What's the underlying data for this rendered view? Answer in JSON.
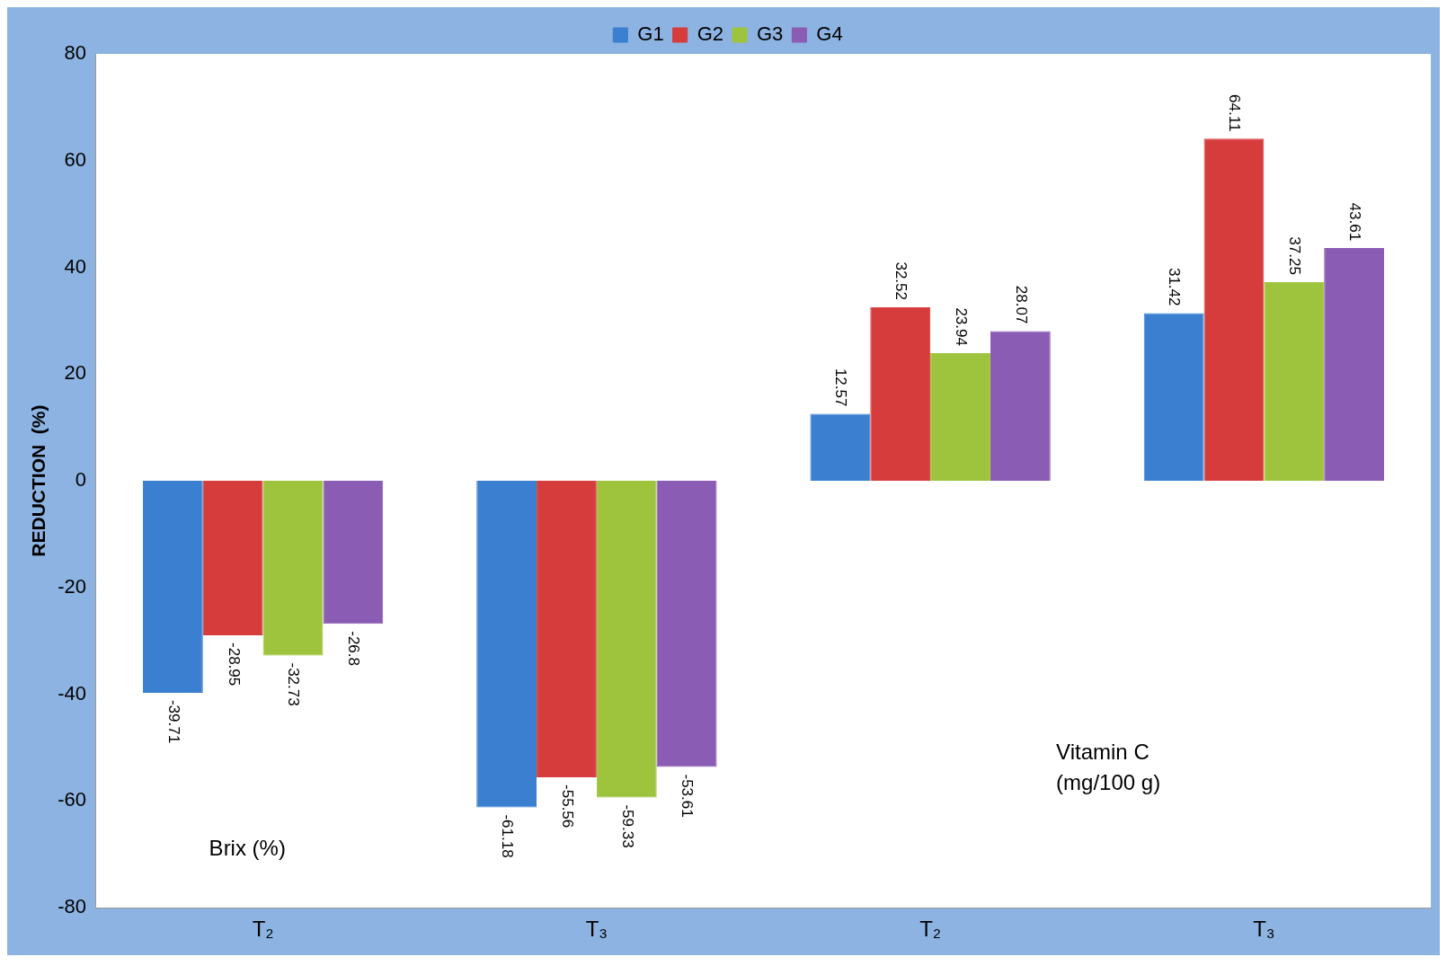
{
  "chart_data": {
    "type": "bar",
    "ylabel": "REDUCTION  (%)",
    "categories": [
      "T₂",
      "T₃",
      "T₂",
      "T₃"
    ],
    "series": [
      {
        "name": "G1",
        "color": "#3a7fd0",
        "values": [
          -39.71,
          -61.18,
          12.57,
          31.42
        ]
      },
      {
        "name": "G2",
        "color": "#d63c3c",
        "values": [
          -28.95,
          -55.56,
          32.52,
          64.11
        ]
      },
      {
        "name": "G3",
        "color": "#9dc43c",
        "values": [
          -32.73,
          -59.33,
          23.94,
          37.25
        ]
      },
      {
        "name": "G4",
        "color": "#8a5cb4",
        "values": [
          -26.8,
          -53.61,
          28.07,
          43.61
        ]
      }
    ],
    "ylim": [
      -80,
      80
    ],
    "yticks": [
      -80,
      -60,
      -40,
      -20,
      0,
      20,
      40,
      60,
      80
    ],
    "grid": false,
    "legend": "top",
    "data_labels": true,
    "annotations": [
      "Brix (%)",
      "Vitamin C\n(mg/100 g)"
    ]
  }
}
